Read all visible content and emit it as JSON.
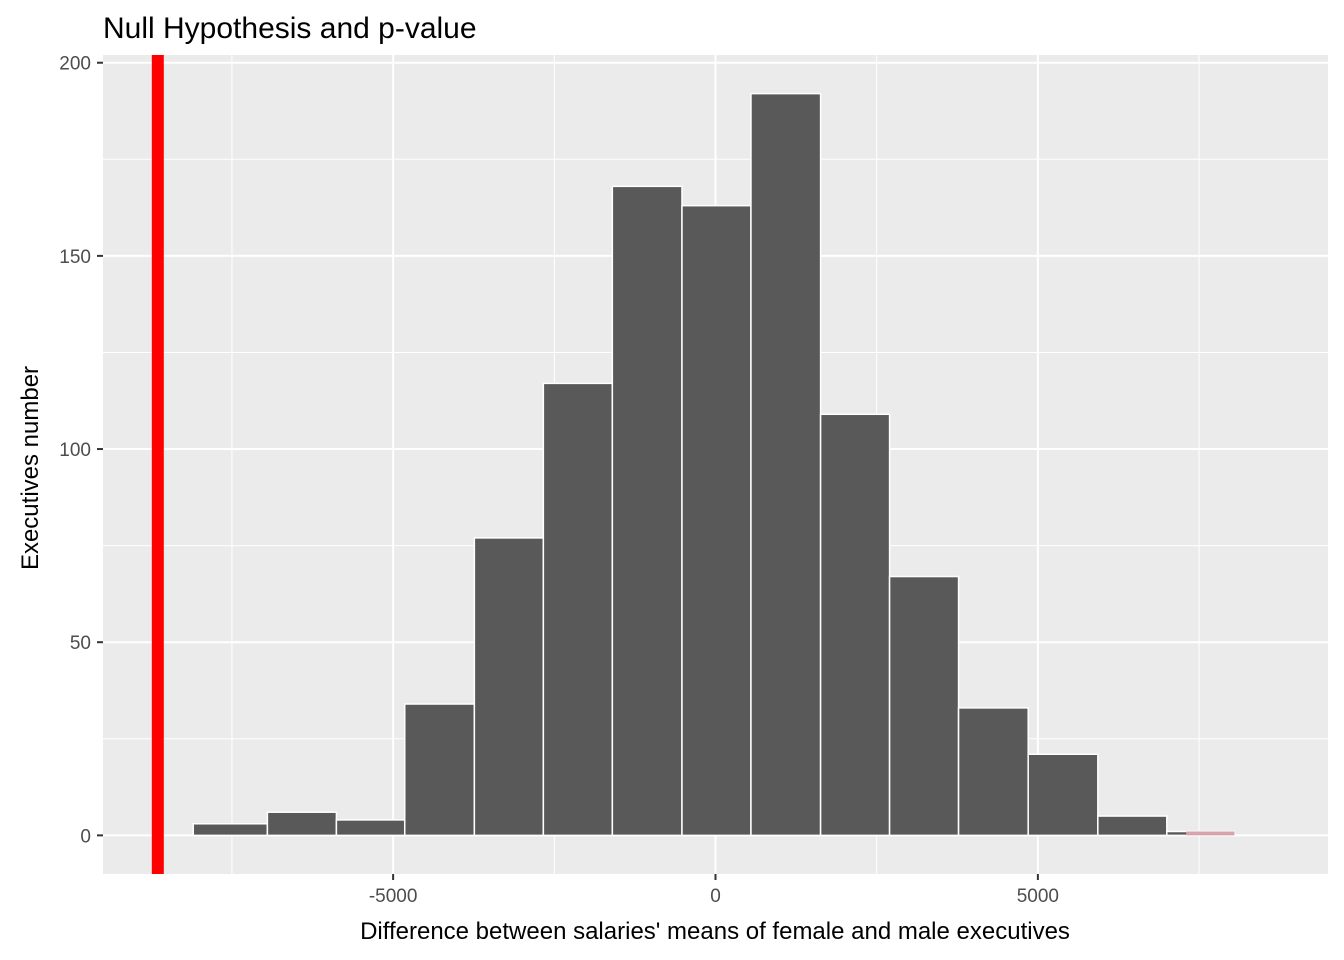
{
  "chart_data": {
    "type": "bar",
    "title": "Null Hypothesis and p-value",
    "xlabel": "Difference between salaries' means of female and male executives",
    "ylabel": "Executives number",
    "xlim": [
      -9500,
      9500
    ],
    "ylim": [
      -10,
      202
    ],
    "x_ticks": [
      -5000,
      0,
      5000
    ],
    "x_tick_labels": [
      "-5000",
      "0",
      "5000"
    ],
    "y_ticks": [
      0,
      50,
      100,
      150,
      200
    ],
    "y_tick_labels": [
      "0",
      "50",
      "100",
      "150",
      "200"
    ],
    "grid": true,
    "bin_edges": [
      -8100,
      -6950,
      -5880,
      -4820,
      -3740,
      -2670,
      -1600,
      -520,
      550,
      1630,
      2700,
      3770,
      4850,
      5930,
      7000,
      8050
    ],
    "values": [
      3,
      6,
      4,
      34,
      77,
      117,
      168,
      163,
      192,
      109,
      67,
      33,
      21,
      5,
      1
    ],
    "observed_statistic": -8650,
    "faint_segment": {
      "x": [
        7300,
        8050
      ],
      "value": 1
    },
    "colors": {
      "bar_fill": "#595959",
      "bar_outline": "#ffffff",
      "panel_background": "#ebebeb",
      "grid": "#ffffff",
      "observed_line": "#ff0000",
      "faint_segment": "#d8a3aa"
    }
  }
}
